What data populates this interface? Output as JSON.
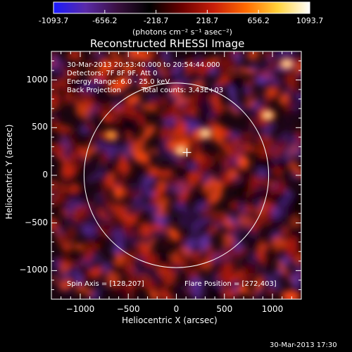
{
  "colorbar": {
    "tick_labels": [
      "-1093.7",
      "-656.2",
      "-218.7",
      "218.7",
      "656.2",
      "1093.7"
    ],
    "tick_values": [
      -1093.7,
      -656.2,
      -218.7,
      218.7,
      656.2,
      1093.7
    ],
    "units": "(photons cm⁻² s⁻¹ asec⁻²)",
    "stops": [
      "#1a1aff",
      "#5a2aa8",
      "#3a1040",
      "#000000",
      "#6a0000",
      "#c81e0a",
      "#ff6a00",
      "#ffd23a",
      "#ffffff"
    ]
  },
  "chart_data": {
    "type": "heatmap",
    "title": "Reconstructed RHESSI Image",
    "xlabel": "Heliocentric X (arcsec)",
    "ylabel": "Heliocentric Y (arcsec)",
    "xlim": [
      -1300,
      1300
    ],
    "ylim": [
      -1300,
      1300
    ],
    "xticks": [
      -1000,
      -500,
      0,
      500,
      1000
    ],
    "yticks": [
      -1000,
      -500,
      0,
      500,
      1000
    ],
    "xtick_labels": [
      "−1000",
      "−500",
      "0",
      "500",
      "1000"
    ],
    "ytick_labels": [
      "−1000",
      "−500",
      "0",
      "500",
      "1000"
    ],
    "solar_limb_radius": 960,
    "flare_marker": [
      110,
      240
    ],
    "bright_sources": [
      {
        "x": 300,
        "y": 440,
        "level": "high"
      },
      {
        "x": 950,
        "y": 630,
        "level": "high"
      },
      {
        "x": 1150,
        "y": 1170,
        "level": "high"
      },
      {
        "x": 50,
        "y": 260,
        "level": "high"
      },
      {
        "x": -680,
        "y": 420,
        "level": "medium"
      }
    ],
    "annotations": [
      "30-Mar-2013 20:53:40.000 to 20:54:44.000",
      "Detectors: 7F 8F 9F, Att 0",
      "Energy Range: 6.0 - 25.0 keV",
      "Back Projection",
      "Total counts: 3.43E+03"
    ],
    "spin_axis": "Spin Axis = [128,207]",
    "flare_position": "Flare Position = [272,403]"
  },
  "footer": {
    "timestamp": "30-Mar-2013 17:30"
  }
}
